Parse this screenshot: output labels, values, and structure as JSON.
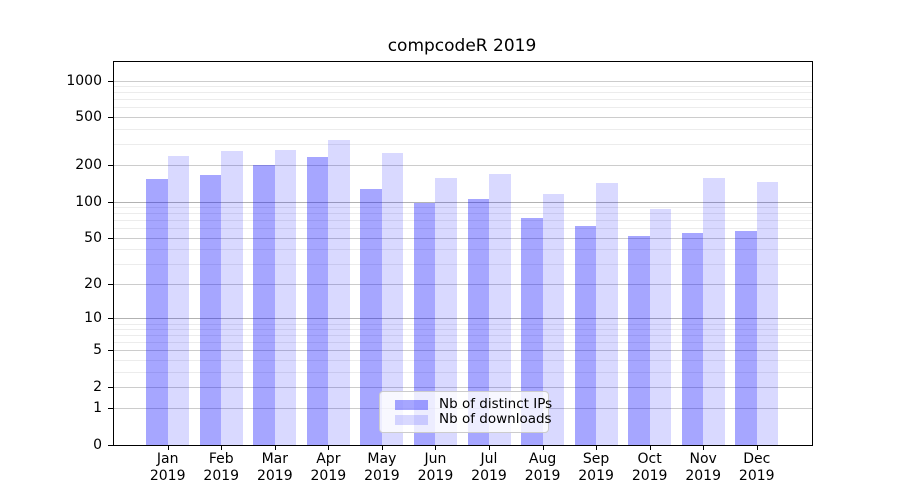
{
  "title": "compcodeR 2019",
  "legend": {
    "items": [
      {
        "label": "Nb of distinct IPs",
        "color": "rgba(0,0,255,0.35)"
      },
      {
        "label": "Nb of downloads",
        "color": "rgba(0,0,255,0.15)"
      }
    ]
  },
  "chart_data": {
    "type": "bar",
    "title": "compcodeR 2019",
    "categories": [
      "Jan",
      "Feb",
      "Mar",
      "Apr",
      "May",
      "Jun",
      "Jul",
      "Aug",
      "Sep",
      "Oct",
      "Nov",
      "Dec"
    ],
    "x_sublabel": "2019",
    "series": [
      {
        "name": "Nb of distinct IPs",
        "color": "rgba(0,0,255,0.35)",
        "values": [
          155,
          166,
          201,
          232,
          126,
          98,
          104,
          73,
          62,
          52,
          55,
          57
        ]
      },
      {
        "name": "Nb of downloads",
        "color": "rgba(0,0,255,0.15)",
        "values": [
          240,
          262,
          266,
          325,
          252,
          158,
          169,
          116,
          142,
          86,
          157,
          146
        ]
      }
    ],
    "yscale": "log1p",
    "ylim": [
      0,
      1000
    ],
    "yticks": [
      0,
      1,
      2,
      5,
      10,
      20,
      50,
      100,
      200,
      500,
      1000
    ],
    "yticks_dark": [
      10,
      100
    ],
    "yticks_minor": [
      3,
      4,
      6,
      7,
      8,
      9,
      30,
      40,
      60,
      70,
      80,
      90,
      300,
      400,
      600,
      700,
      800,
      900
    ],
    "grid": "horizontal",
    "legend_position": "lower-center"
  }
}
